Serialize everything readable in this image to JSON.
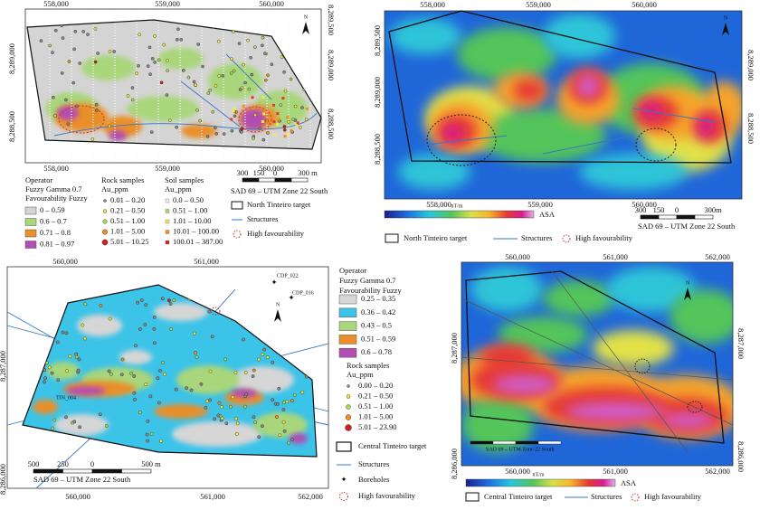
{
  "panel_a": {
    "x_ticks": [
      "558,000",
      "559,000",
      "560,000"
    ],
    "y_ticks_left": [
      "8,289,000",
      "8,288,500"
    ],
    "y_ticks_right": [
      "8,289,500",
      "8,289,000",
      "8,288,500"
    ],
    "north": "N",
    "scale_bar": [
      "300",
      "150",
      "0",
      "300 m"
    ],
    "datum": "SAD 69 – UTM Zone 22 South",
    "favourability": {
      "title": [
        "Operator",
        "Fuzzy Gamma 0.7",
        "Favourability Fuzzy"
      ],
      "items": [
        "0 – 0.59",
        "0.6 – 0.7",
        "0.71 – 0.8",
        "0.81 – 0.97"
      ]
    },
    "rock_samples": {
      "title": "Rock samples",
      "unit": "Au_ppm",
      "items": [
        "0.01 – 0.20",
        "0.21 – 0.50",
        "0.51 – 1.00",
        "1.01 – 5.00",
        "5.01 – 10.25"
      ]
    },
    "soil_samples": {
      "title": "Soil samples",
      "unit": "Au_ppm",
      "items": [
        "0.0 – 0.50",
        "0.51 – 1.00",
        "1.01 – 10.00",
        "10.01 – 100.00",
        "100.01 – 387.00"
      ]
    },
    "target": "North Tinteiro target",
    "structures": "Structures",
    "high_favourability": "High favourability"
  },
  "panel_b": {
    "x_ticks": [
      "558,000",
      "559,000",
      "560,000"
    ],
    "y_ticks_left": [
      "8,289,500",
      "8,289,000",
      "8,288,500"
    ],
    "y_ticks_right": [
      "8,289,000",
      "8,288,500"
    ],
    "north": "N",
    "colorbar_unit": "nT/m",
    "colorbar_label": "ASA",
    "scale_bar": [
      "300",
      "150",
      "0",
      "300m"
    ],
    "datum": "SAD 69 – UTM Zone 22 South",
    "target": "North Tinteiro target",
    "structures": "Structures",
    "high_favourability": "High favourability"
  },
  "panel_c": {
    "x_ticks_top": [
      "560,000",
      "561,000"
    ],
    "x_ticks_bottom": [
      "560,000",
      "561,000",
      "562,000"
    ],
    "y_ticks_left": [
      "8,287,000",
      "8,286,000"
    ],
    "north": "N",
    "boreholes_labels": [
      "CDP_022",
      "CDP_016",
      "TIN_004"
    ],
    "scale_bar": [
      "500",
      "250",
      "0",
      "500 m"
    ],
    "datum": "SAD 69 – UTM Zone 22 South",
    "favourability": {
      "title": [
        "Operator",
        "Fuzzy Gamma 0.7",
        "Favourability Fuzzy"
      ],
      "items": [
        "0.25 – 0.35",
        "0.36 – 0.42",
        "0.43 – 0.5",
        "0.51 – 0.59",
        "0.6 – 0.78"
      ]
    },
    "rock_samples": {
      "title": "Rock samples",
      "unit": "Au_ppm",
      "items": [
        "0.00 – 0.20",
        "0.21 – 0.50",
        "0.51 – 1.00",
        "1.01 – 5.00",
        "5.01 – 23.90"
      ]
    },
    "target": "Central Tinteiro target",
    "structures": "Structures",
    "boreholes": "Boreholes",
    "high_favourability": "High favourability"
  },
  "panel_d": {
    "x_ticks": [
      "560,000",
      "561,000",
      "562,000"
    ],
    "y_ticks_left": [
      "8,287,000",
      "8,286,000"
    ],
    "y_ticks_right": [
      "8,287,000",
      "8,286,000"
    ],
    "north": "N",
    "datum": "SAD 69 – UTM Zone 22 South",
    "colorbar_unit": "nT/m",
    "colorbar_label": "ASA",
    "target": "Central Tinteiro target",
    "structures": "Structures",
    "high_favourability": "High favourability"
  }
}
